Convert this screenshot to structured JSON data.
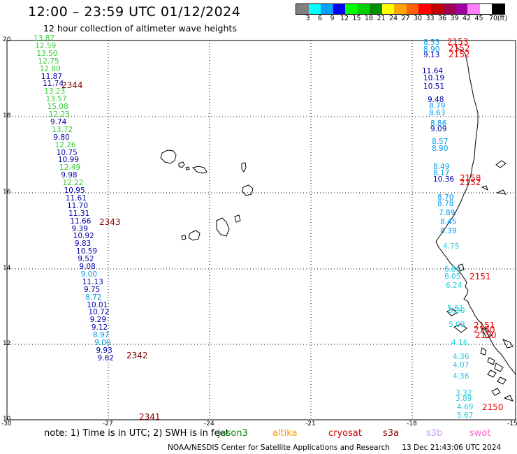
{
  "header": {
    "title": "12:00 – 23:59 UTC 01/12/2024",
    "subtitle": "12 hour collection of altimeter wave heights"
  },
  "legend": {
    "unit": "(ft)",
    "colors": [
      "#808080",
      "#00ffff",
      "#00a0ff",
      "#0000ff",
      "#00ff00",
      "#00d000",
      "#009000",
      "#ffff00",
      "#ffa500",
      "#ff6000",
      "#ff0000",
      "#c00000",
      "#a00050",
      "#a000a0",
      "#ff80ff",
      "#ffffff",
      "#000000"
    ],
    "ticks": [
      "3",
      "6",
      "9",
      "12",
      "15",
      "18",
      "21",
      "24",
      "27",
      "30",
      "33",
      "36",
      "39",
      "42",
      "45",
      "70"
    ]
  },
  "axes": {
    "x_ticks": [
      "-30",
      "-27",
      "-24",
      "-21",
      "-18",
      "-15"
    ],
    "y_ticks": [
      "20",
      "18",
      "16",
      "14",
      "12",
      "10"
    ]
  },
  "tracks": [
    {
      "color": "#33cc33",
      "labels": [
        "13.87",
        "12.59",
        "13.50",
        "12.75",
        "12.80"
      ]
    },
    {
      "color": "#0000aa",
      "labels": [
        "11.87",
        "11.74"
      ]
    },
    {
      "color": "#33cc33",
      "labels": [
        "13.23",
        "13.57",
        "15.08",
        "12.23"
      ]
    },
    {
      "color": "#0000aa",
      "labels": [
        "9.74"
      ]
    },
    {
      "color": "#33cc33",
      "labels": [
        "13.72"
      ]
    },
    {
      "color": "#0000aa",
      "labels": [
        "9.80"
      ]
    },
    {
      "color": "#33cc33",
      "labels": [
        "12.26"
      ]
    },
    {
      "color": "#0000aa",
      "labels": [
        "10.75",
        "10.99"
      ]
    },
    {
      "color": "#33cc33",
      "labels": [
        "12.49"
      ]
    },
    {
      "color": "#0000aa",
      "labels": [
        "9.98"
      ]
    },
    {
      "color": "#33cc33",
      "labels": [
        "12.22"
      ]
    },
    {
      "color": "#0000aa",
      "labels": [
        "10.95",
        "11.61",
        "11.70",
        "11.31",
        "11.66",
        "9.39",
        "10.92",
        "9.83",
        "10.59",
        "9.52",
        "9.08"
      ]
    },
    {
      "color": "#0099ee",
      "labels": [
        "9.00"
      ]
    },
    {
      "color": "#0000aa",
      "labels": [
        "11.13",
        "9.75"
      ]
    },
    {
      "color": "#0099ee",
      "labels": [
        "8.72"
      ]
    },
    {
      "color": "#0000aa",
      "labels": [
        "10.01",
        "10.72",
        "9.29",
        "9.12"
      ]
    },
    {
      "color": "#0099ee",
      "labels": [
        "8.97",
        "9.00"
      ]
    },
    {
      "color": "#0000aa",
      "labels": [
        "9.93",
        "9.62"
      ]
    }
  ],
  "east_track": [
    {
      "t": "8.53",
      "c": "#0099ee"
    },
    {
      "t": "8.90",
      "c": "#0099ee"
    },
    {
      "t": "9.13",
      "c": "#0000aa"
    },
    {
      "t": "11.64",
      "c": "#0000aa"
    },
    {
      "t": "10.19",
      "c": "#0000aa"
    },
    {
      "t": "10.51",
      "c": "#0000aa"
    },
    {
      "t": "9.48",
      "c": "#0000aa"
    },
    {
      "t": "8.79",
      "c": "#0099ee"
    },
    {
      "t": "8.63",
      "c": "#0099ee"
    },
    {
      "t": "8.86",
      "c": "#0099ee"
    },
    {
      "t": "9.09",
      "c": "#0000aa"
    },
    {
      "t": "8.57",
      "c": "#0099ee"
    },
    {
      "t": "8.90",
      "c": "#0099ee"
    },
    {
      "t": "8.49",
      "c": "#0099ee"
    },
    {
      "t": "8.17",
      "c": "#0099ee"
    },
    {
      "t": "10.36",
      "c": "#0000aa"
    },
    {
      "t": "8.70",
      "c": "#0099ee"
    },
    {
      "t": "8.78",
      "c": "#0099ee"
    },
    {
      "t": "7.89",
      "c": "#0099ee"
    },
    {
      "t": "8.45",
      "c": "#0099ee"
    },
    {
      "t": "8.39",
      "c": "#0099ee"
    },
    {
      "t": "4.75",
      "c": "#22ccdd"
    },
    {
      "t": "6.80",
      "c": "#22ccdd"
    },
    {
      "t": "6.05",
      "c": "#22ccdd"
    },
    {
      "t": "6.24",
      "c": "#22ccdd"
    },
    {
      "t": "5.61",
      "c": "#22ccdd"
    },
    {
      "t": "5.30",
      "c": "#22ccdd"
    },
    {
      "t": "5.09",
      "c": "#22ccdd"
    },
    {
      "t": "4.16",
      "c": "#22ccdd"
    },
    {
      "t": "4.36",
      "c": "#22ccdd"
    },
    {
      "t": "4.07",
      "c": "#22ccdd"
    },
    {
      "t": "4.36",
      "c": "#22ccdd"
    },
    {
      "t": "3.32",
      "c": "#22ccdd"
    },
    {
      "t": "3.89",
      "c": "#22ccdd"
    },
    {
      "t": "4.69",
      "c": "#22ccdd"
    },
    {
      "t": "5.67",
      "c": "#22ccdd"
    }
  ],
  "pass_times_west": [
    "2344",
    "2343",
    "2342",
    "2341"
  ],
  "pass_times_east": [
    "2153",
    "2152",
    "2152",
    "2158",
    "2152",
    "2151",
    "2151",
    "2150",
    "2150",
    "2150"
  ],
  "footer": {
    "note": "note:  1) Time is in UTC;  2) SWH is in feet",
    "satellites": [
      {
        "name": "jason3",
        "color": "#008800"
      },
      {
        "name": "altika",
        "color": "#ff9900"
      },
      {
        "name": "cryosat",
        "color": "#cc0000"
      },
      {
        "name": "s3a",
        "color": "#880000"
      },
      {
        "name": "s3b",
        "color": "#cc99ff"
      },
      {
        "name": "swot",
        "color": "#ff66cc"
      }
    ],
    "credit": "NOAA/NESDIS Center for Satellite Applications and Research",
    "timestamp": "13 Dec 21:43:06 UTC 2024"
  }
}
